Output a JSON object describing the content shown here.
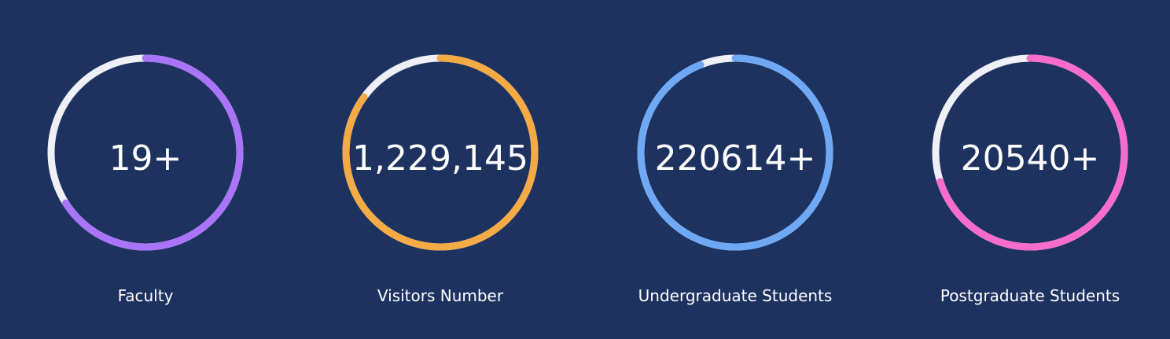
{
  "stats": [
    {
      "value": "19+",
      "label": "Faculty",
      "color": "#a974f7",
      "progress": 0.66
    },
    {
      "value": "1,229,145",
      "label": "Visitors Number",
      "color": "#f4ab45",
      "progress": 0.85
    },
    {
      "value": "220614+",
      "label": "Undergraduate Students",
      "color": "#6fa9f6",
      "progress": 0.94
    },
    {
      "value": "20540+",
      "label": "Postgraduate Students",
      "color": "#f86dcb",
      "progress": 0.7
    }
  ],
  "track_color": "#eef0f6"
}
